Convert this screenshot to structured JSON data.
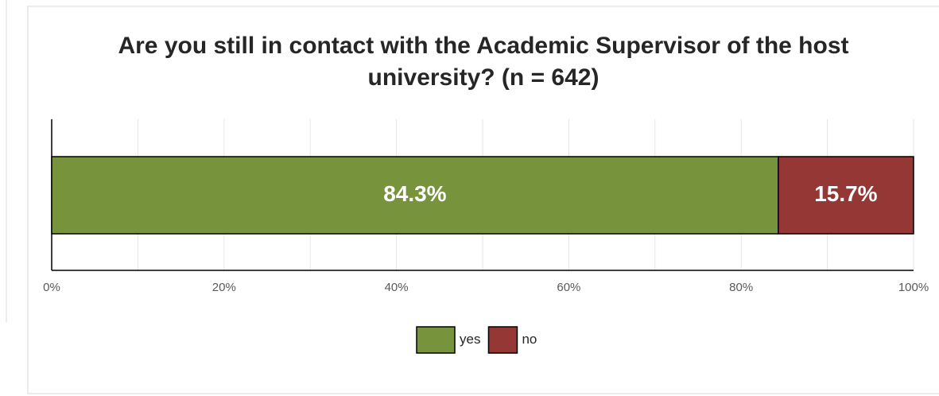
{
  "chart_data": {
    "type": "stacked_bar_horizontal",
    "title": "Are you still in contact with the Academic Supervisor of the host university? (n = 642)",
    "categories": [
      null
    ],
    "series": [
      {
        "name": "yes",
        "color": "#77933c",
        "values": [
          84.3
        ],
        "value_labels": [
          "84.3%"
        ]
      },
      {
        "name": "no",
        "color": "#953735",
        "values": [
          15.7
        ],
        "value_labels": [
          "15.7%"
        ]
      }
    ],
    "xlim": [
      0,
      100
    ],
    "xticks": [
      {
        "value": 0,
        "label": "0%"
      },
      {
        "value": 20,
        "label": "20%"
      },
      {
        "value": 40,
        "label": "40%"
      },
      {
        "value": 60,
        "label": "60%"
      },
      {
        "value": 80,
        "label": "80%"
      },
      {
        "value": 100,
        "label": "100%"
      }
    ],
    "minor_xticks": [
      10,
      30,
      50,
      70,
      90
    ],
    "grid": true,
    "legend": "bottom"
  }
}
